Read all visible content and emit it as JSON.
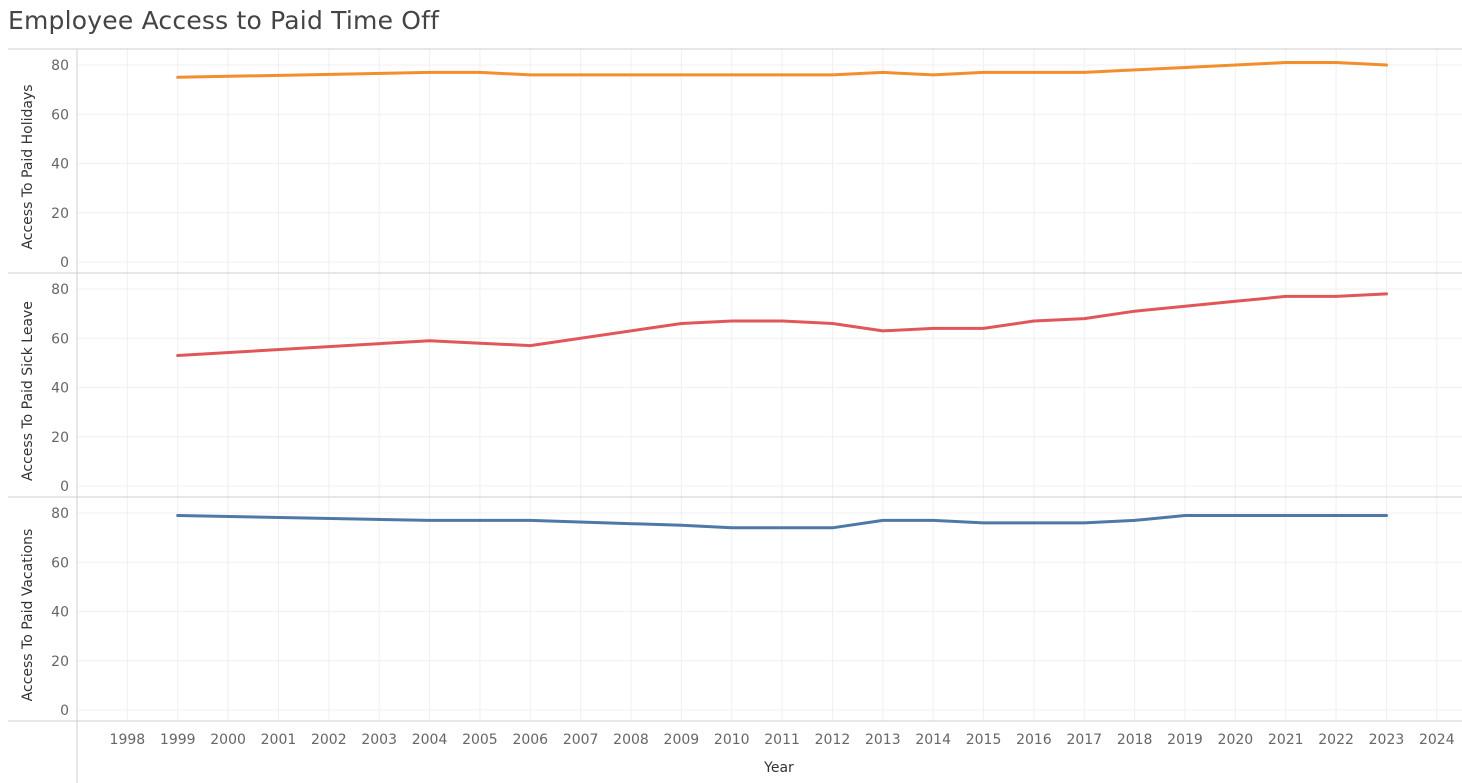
{
  "chart_data": {
    "type": "line",
    "title": "Employee Access to Paid Time Off",
    "xlabel": "Year",
    "x_ticks": [
      "1998",
      "1999",
      "2000",
      "2001",
      "2002",
      "2003",
      "2004",
      "2005",
      "2006",
      "2007",
      "2008",
      "2009",
      "2010",
      "2011",
      "2012",
      "2013",
      "2014",
      "2015",
      "2016",
      "2017",
      "2018",
      "2019",
      "2020",
      "2021",
      "2022",
      "2023",
      "2024"
    ],
    "xlim": [
      1997.0,
      2024.5
    ],
    "y_ticks": [
      "0",
      "20",
      "40",
      "60",
      "80"
    ],
    "ylim": [
      0,
      80
    ],
    "grid": true,
    "x": [
      1999,
      2004,
      2005,
      2006,
      2009,
      2010,
      2011,
      2012,
      2013,
      2014,
      2015,
      2016,
      2017,
      2018,
      2019,
      2020,
      2021,
      2022,
      2023
    ],
    "series": [
      {
        "ylabel": "Access To Paid Holidays",
        "color": "#F28E2B",
        "values": [
          75,
          77,
          77,
          76,
          76,
          76,
          76,
          76,
          77,
          76,
          77,
          77,
          77,
          78,
          79,
          80,
          81,
          81,
          80
        ]
      },
      {
        "ylabel": "Access To Paid Sick Leave",
        "color": "#E15759",
        "values": [
          53,
          59,
          58,
          57,
          66,
          67,
          67,
          66,
          63,
          64,
          64,
          67,
          68,
          71,
          73,
          75,
          77,
          77,
          78
        ]
      },
      {
        "ylabel": "Access To Paid Vacations",
        "color": "#4E79A7",
        "values": [
          79,
          77,
          77,
          77,
          75,
          74,
          74,
          74,
          77,
          77,
          76,
          76,
          76,
          77,
          79,
          79,
          79,
          79,
          79
        ]
      }
    ]
  }
}
